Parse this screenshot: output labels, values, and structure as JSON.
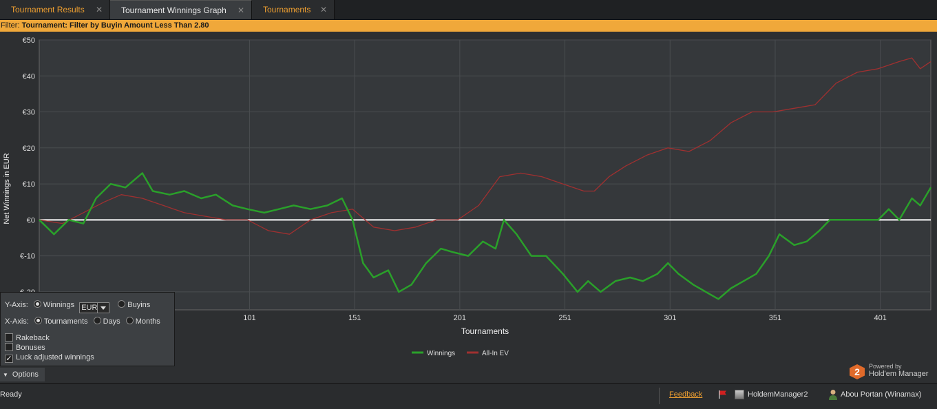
{
  "tabs": [
    {
      "label": "Tournament Results",
      "active": false
    },
    {
      "label": "Tournament Winnings Graph",
      "active": true
    },
    {
      "label": "Tournaments",
      "active": false
    }
  ],
  "filter": {
    "prefix": "Filter:",
    "text": "Tournament: Filter by Buyin Amount Less Than 2.80"
  },
  "chart_data": {
    "type": "line",
    "xlabel": "Tournaments",
    "ylabel": "Net Winnings in EUR",
    "xlim": [
      1,
      425
    ],
    "ylim": [
      -25,
      50
    ],
    "x_ticks": [
      "101",
      "151",
      "201",
      "251",
      "301",
      "351",
      "401"
    ],
    "y_ticks": [
      "€50",
      "€40",
      "€30",
      "€20",
      "€10",
      "€0",
      "€-10",
      "€-20"
    ],
    "grid": true,
    "legend_position": "bottom-center",
    "series": [
      {
        "name": "Winnings",
        "color": "#2aa02a",
        "x": [
          1,
          8,
          15,
          22,
          28,
          35,
          42,
          50,
          55,
          63,
          70,
          78,
          85,
          93,
          100,
          108,
          115,
          122,
          130,
          138,
          145,
          150,
          155,
          160,
          167,
          172,
          178,
          185,
          192,
          198,
          205,
          212,
          218,
          222,
          228,
          235,
          242,
          250,
          257,
          262,
          268,
          275,
          282,
          288,
          295,
          300,
          305,
          312,
          318,
          324,
          330,
          336,
          342,
          348,
          353,
          360,
          366,
          372,
          377,
          380,
          385,
          390,
          395,
          400,
          405,
          410,
          416,
          420,
          425
        ],
        "y": [
          0,
          -4,
          0,
          -1,
          6,
          10,
          9,
          13,
          8,
          7,
          8,
          6,
          7,
          4,
          3,
          2,
          3,
          4,
          3,
          4,
          6,
          0,
          -12,
          -16,
          -14,
          -20,
          -18,
          -12,
          -8,
          -9,
          -10,
          -6,
          -8,
          0,
          -4,
          -10,
          -10,
          -15,
          -20,
          -17,
          -20,
          -17,
          -16,
          -17,
          -15,
          -12,
          -15,
          -18,
          -20,
          -22,
          -19,
          -17,
          -15,
          -10,
          -4,
          -7,
          -6,
          -3,
          0,
          0,
          0,
          0,
          0,
          0,
          3,
          0,
          6,
          4,
          9
        ]
      },
      {
        "name": "All-In EV",
        "color": "#a03030",
        "x": [
          1,
          12,
          22,
          32,
          40,
          50,
          60,
          70,
          80,
          90,
          100,
          110,
          120,
          130,
          140,
          150,
          160,
          170,
          180,
          190,
          200,
          210,
          220,
          230,
          240,
          250,
          260,
          265,
          272,
          280,
          290,
          300,
          310,
          320,
          330,
          340,
          350,
          360,
          370,
          380,
          390,
          400,
          410,
          416,
          420,
          425
        ],
        "y": [
          0,
          -1,
          2,
          5,
          7,
          6,
          4,
          2,
          1,
          0,
          0,
          -3,
          -4,
          0,
          2,
          3,
          -2,
          -3,
          -2,
          0,
          0,
          4,
          12,
          13,
          12,
          10,
          8,
          8,
          12,
          15,
          18,
          20,
          19,
          22,
          27,
          30,
          30,
          31,
          32,
          38,
          41,
          42,
          44,
          45,
          42,
          44
        ]
      }
    ]
  },
  "options": {
    "y_axis_label": "Y-Axis:",
    "y_winnings": "Winnings",
    "currency": "EUR",
    "y_buyins": "Buyins",
    "x_axis_label": "X-Axis:",
    "x_tournaments": "Tournaments",
    "x_days": "Days",
    "x_months": "Months",
    "rakeback": "Rakeback",
    "bonuses": "Bonuses",
    "luck_adjusted": "Luck adjusted winnings",
    "options_button": "Options"
  },
  "powered": {
    "line1": "Powered by",
    "line2": "Hold'em Manager",
    "badge": "2"
  },
  "status": {
    "ready": "Ready",
    "feedback": "Feedback",
    "app": "HoldemManager2",
    "user": "Abou Portan (Winamax)"
  }
}
